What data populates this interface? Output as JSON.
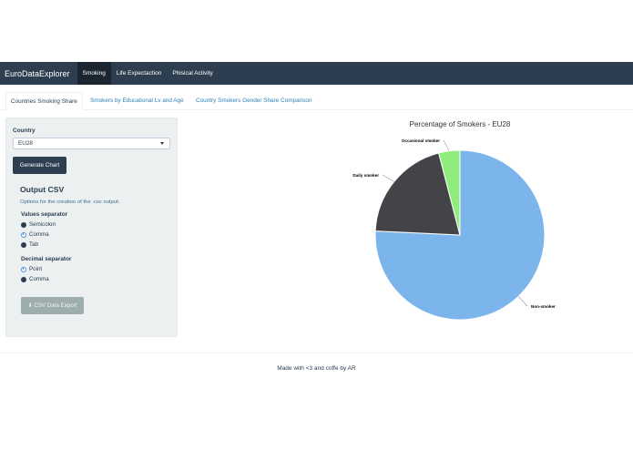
{
  "navbar": {
    "brand": "EuroDataExplorer",
    "items": [
      "Smoking",
      "Life Expectaction",
      "Phisical Activity"
    ]
  },
  "tabs": [
    "Countries Smoking Share",
    "Smokers by Educational Lv and Age",
    "Country Smokers Gender Share Comparison"
  ],
  "sidebar": {
    "country_label": "Country",
    "country_value": "EU28",
    "generate_label": "Generate Chart",
    "output_title": "Output CSV",
    "output_help": "Options for the creation of the .csv output.",
    "values_sep_label": "Values separator",
    "values_sep_options": [
      "Semicolon",
      "Comma",
      "Tab"
    ],
    "values_sep_selected": "Comma",
    "decimal_sep_label": "Decimal separator",
    "decimal_sep_options": [
      "Point",
      "Comma"
    ],
    "decimal_sep_selected": "Point",
    "export_label": "CSV Data Export"
  },
  "footer": "Made with <3 and coffe by AR",
  "chart_data": {
    "type": "pie",
    "title": "Percentage of Smokers - EU28",
    "categories": [
      "Non-smoker",
      "Daily smoker",
      "Occasional smoker"
    ],
    "values": [
      75,
      20,
      4
    ],
    "colors": [
      "#7cb5ec",
      "#434348",
      "#90ed7d"
    ]
  }
}
